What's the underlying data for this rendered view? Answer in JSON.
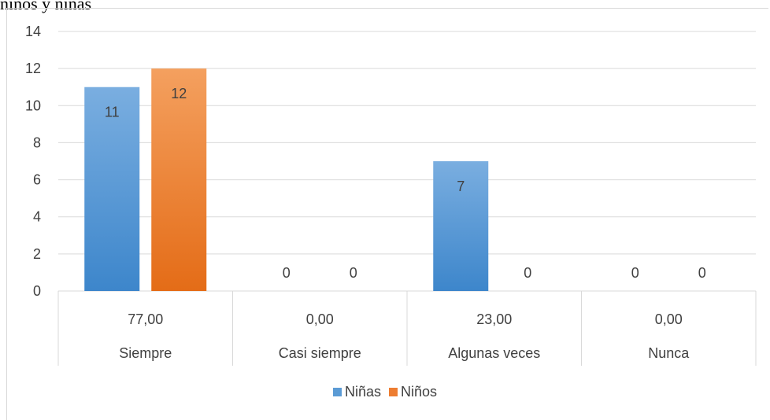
{
  "heading": "niños y niñas",
  "chart_data": {
    "type": "bar",
    "categories": [
      "Siempre",
      "Casi siempre",
      "Algunas veces",
      "Nunca"
    ],
    "table_row": [
      "77,00",
      "0,00",
      "23,00",
      "0,00"
    ],
    "series": [
      {
        "name": "Niñas",
        "values": [
          11,
          0,
          7,
          0
        ],
        "color": "#5b9bd5"
      },
      {
        "name": "Niños",
        "values": [
          12,
          0,
          0,
          0
        ],
        "color": "#ed7d31"
      }
    ],
    "ylim": [
      0,
      14
    ],
    "yticks": [
      0,
      2,
      4,
      6,
      8,
      10,
      12,
      14
    ],
    "grid": true,
    "legend": "bottom",
    "data_labels": true
  }
}
